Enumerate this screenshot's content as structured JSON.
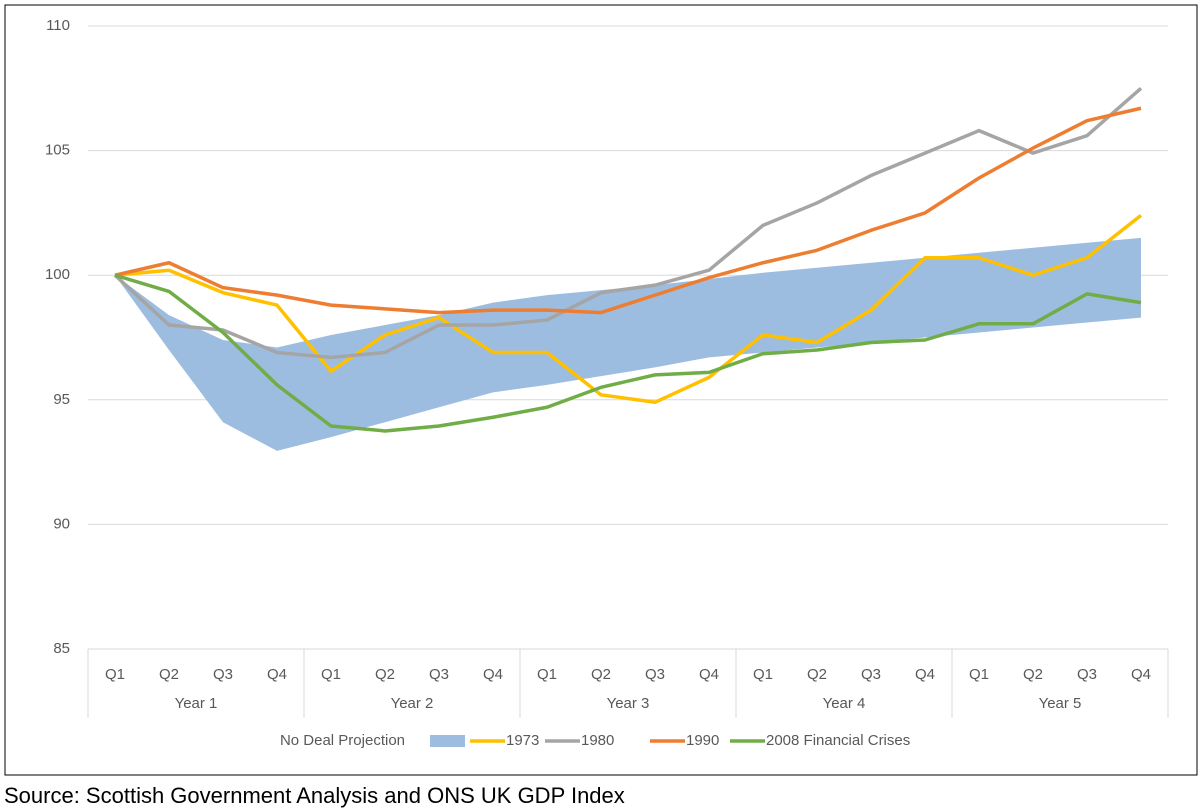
{
  "chart_data": {
    "type": "line",
    "categories": [
      "Q1",
      "Q2",
      "Q3",
      "Q4",
      "Q1",
      "Q2",
      "Q3",
      "Q4",
      "Q1",
      "Q2",
      "Q3",
      "Q4",
      "Q1",
      "Q2",
      "Q3",
      "Q4",
      "Q1",
      "Q2",
      "Q3",
      "Q4"
    ],
    "category_groups": [
      "Year 1",
      "Year 2",
      "Year 3",
      "Year 4",
      "Year 5"
    ],
    "ylim": [
      85,
      110
    ],
    "yticks": [
      85,
      90,
      95,
      100,
      105,
      110
    ],
    "grid": true,
    "legend": "bottom",
    "band": {
      "name": "No Deal Projection",
      "color": "#9dbde0",
      "upper": [
        100,
        98.4,
        97.4,
        97.1,
        97.6,
        98.0,
        98.4,
        98.9,
        99.2,
        99.4,
        99.6,
        99.85,
        100.1,
        100.3,
        100.5,
        100.7,
        100.9,
        101.1,
        101.3,
        101.5
      ],
      "lower": [
        100,
        97.0,
        94.1,
        92.95,
        93.5,
        94.1,
        94.7,
        95.3,
        95.6,
        95.95,
        96.3,
        96.7,
        96.9,
        97.1,
        97.3,
        97.5,
        97.7,
        97.9,
        98.1,
        98.3
      ]
    },
    "series": [
      {
        "name": "1973",
        "color": "#ffc000",
        "values": [
          100,
          100.2,
          99.3,
          98.8,
          96.15,
          97.6,
          98.3,
          96.9,
          96.9,
          95.2,
          94.9,
          95.9,
          97.6,
          97.3,
          98.6,
          100.7,
          100.7,
          100.0,
          100.7,
          102.4
        ]
      },
      {
        "name": "1980",
        "color": "#a5a5a5",
        "values": [
          100,
          98.0,
          97.8,
          96.9,
          96.7,
          96.9,
          98.0,
          98.0,
          98.2,
          99.3,
          99.6,
          100.2,
          102.0,
          102.9,
          104.0,
          104.9,
          105.8,
          104.9,
          105.6,
          107.5
        ]
      },
      {
        "name": "1990",
        "color": "#ed7d31",
        "values": [
          100,
          100.5,
          99.5,
          99.2,
          98.8,
          98.65,
          98.5,
          98.6,
          98.6,
          98.5,
          99.2,
          99.9,
          100.5,
          101.0,
          101.8,
          102.5,
          103.9,
          105.1,
          106.2,
          106.7
        ]
      },
      {
        "name": "2008 Financial Crises",
        "color": "#70ad47",
        "values": [
          100,
          99.35,
          97.7,
          95.6,
          93.95,
          93.75,
          93.95,
          94.3,
          94.7,
          95.5,
          96.0,
          96.1,
          96.85,
          97.0,
          97.3,
          97.4,
          98.05,
          98.05,
          99.25,
          98.9
        ]
      }
    ]
  },
  "source": "Source: Scottish Government Analysis and ONS UK GDP Index"
}
